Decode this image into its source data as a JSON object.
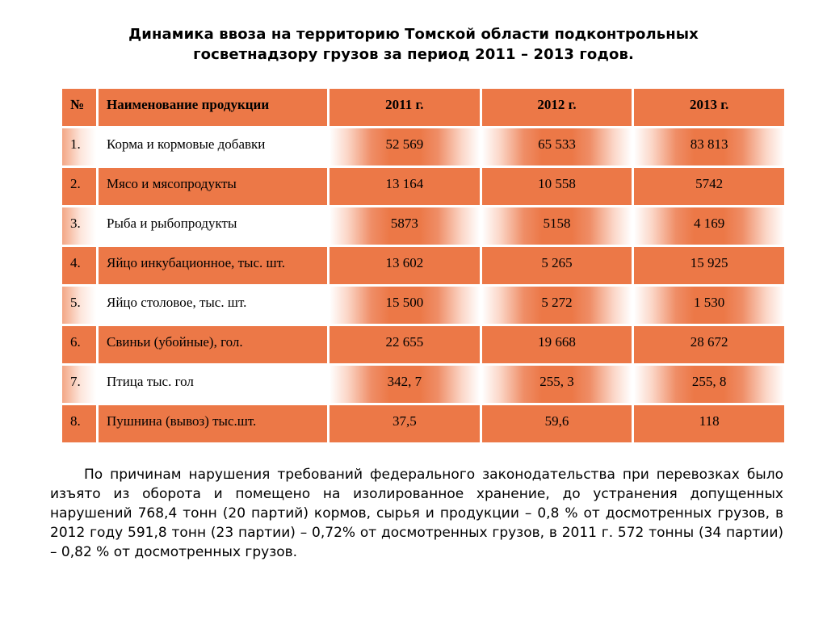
{
  "title": {
    "line1": "Динамика ввоза на территорию Томской области подконтрольных",
    "line2": "госветнадзору грузов за период 2011 – 2013 годов."
  },
  "table": {
    "headers": [
      "№",
      "Наименование продукции",
      "2011 г.",
      "2012 г.",
      "2013 г."
    ],
    "rows": [
      {
        "num": "1.",
        "name": "Корма и кормовые добавки",
        "y2011": "52 569",
        "y2012": "65 533",
        "y2013": "83 813"
      },
      {
        "num": "2.",
        "name": "Мясо и мясопродукты",
        "y2011": "13 164",
        "y2012": "10 558",
        "y2013": "5742"
      },
      {
        "num": "3.",
        "name": "Рыба и рыбопродукты",
        "y2011": "5873",
        "y2012": "5158",
        "y2013": "4 169"
      },
      {
        "num": "4.",
        "name": "Яйцо инкубационное, тыс. шт.",
        "y2011": "13 602",
        "y2012": "5 265",
        "y2013": "15 925"
      },
      {
        "num": "5.",
        "name": "Яйцо столовое, тыс. шт.",
        "y2011": "15 500",
        "y2012": "5 272",
        "y2013": "1 530"
      },
      {
        "num": "6.",
        "name": "Свиньи (убойные), гол.",
        "y2011": "22 655",
        "y2012": "19 668",
        "y2013": "28 672"
      },
      {
        "num": "7.",
        "name": "Птица  тыс. гол",
        "y2011": "342, 7",
        "y2012": "255, 3",
        "y2013": "255, 8"
      },
      {
        "num": "8.",
        "name": "Пушнина (вывоз) тыс.шт.",
        "y2011": "37,5",
        "y2012": "59,6",
        "y2013": "118"
      }
    ]
  },
  "note": "По причинам нарушения требований федерального законодательства при перевозках было изъято из оборота и помещено на изолированное хранение, до устранения допущенных нарушений 768,4 тонн (20 партий) кормов, сырья и продукции – 0,8 % от досмотренных грузов, в 2012 году 591,8 тонн (23 партии) – 0,72%  от досмотренных грузов, в 2011 г. 572 тонны (34 партии) – 0,82 % от досмотренных грузов.",
  "colors": {
    "accent_orange": "#ec7847",
    "light_fade": "#fde6dc"
  }
}
